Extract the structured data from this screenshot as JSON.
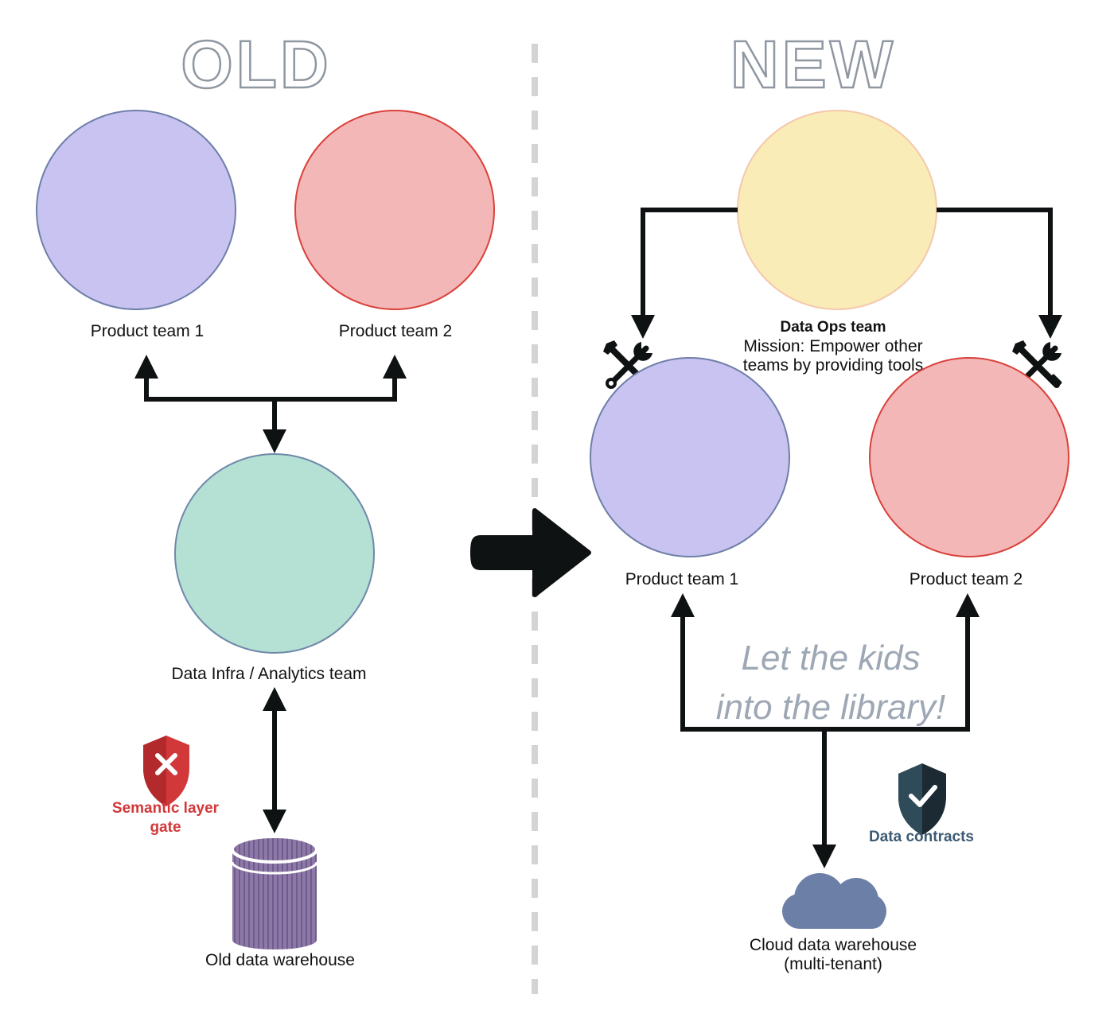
{
  "old": {
    "title": "OLD",
    "product_team_1": "Product team 1",
    "product_team_2": "Product team 2",
    "infra_team": "Data Infra / Analytics team",
    "gate_label_line1": "Semantic layer",
    "gate_label_line2": "gate",
    "warehouse": "Old data warehouse"
  },
  "new": {
    "title": "NEW",
    "ops_team_name": "Data Ops team",
    "ops_mission_line1": "Mission: Empower other",
    "ops_mission_line2": "teams by providing tools",
    "product_team_1": "Product team 1",
    "product_team_2": "Product team 2",
    "slogan_line1": "Let the kids",
    "slogan_line2": "into the library!",
    "contracts_label": "Data contracts",
    "warehouse_line1": "Cloud data warehouse",
    "warehouse_line2": "(multi-tenant)"
  },
  "colors": {
    "purple_fill": "#c8c3f0",
    "purple_stroke": "#6f7fa8",
    "red_fill": "#f4b7b7",
    "red_stroke": "#d9413b",
    "teal_fill": "#b5e0d4",
    "teal_stroke": "#6f88aa",
    "yellow_fill": "#f9ecb6",
    "yellow_stroke": "#f4c8ad",
    "gate_red": "#d2383a",
    "contracts_blue": "#3c5a73",
    "cloud_blue": "#6c7fa6",
    "cylinder_purple": "#8e78a8"
  },
  "icons": [
    "shield-x-icon",
    "shield-check-icon",
    "wrench-screwdriver-icon",
    "cloud-icon",
    "database-cylinder-icon",
    "big-arrow-right-icon"
  ]
}
